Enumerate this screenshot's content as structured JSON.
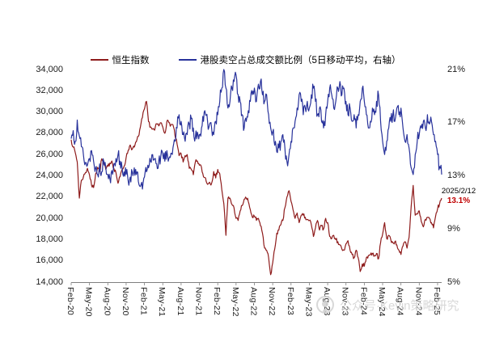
{
  "watermark": {
    "text": "公众号·Kevin策略研究"
  },
  "chart_data": {
    "type": "line",
    "title": "",
    "xlabel": "",
    "grid": false,
    "legend_position": "top",
    "points_per_month": 3,
    "x_tick_labels": [
      "Feb-20",
      "May-20",
      "Aug-20",
      "Nov-20",
      "Feb-21",
      "May-21",
      "Aug-21",
      "Nov-21",
      "Feb-22",
      "May-22",
      "Aug-22",
      "Nov-22",
      "Feb-23",
      "May-23",
      "Aug-23",
      "Nov-23",
      "Feb-24",
      "May-24",
      "Aug-24",
      "Nov-24",
      "Feb-25"
    ],
    "left_axis": {
      "min": 14000,
      "max": 34000,
      "tick_step": 2000,
      "tick_labels": [
        "34,000",
        "32,000",
        "30,000",
        "28,000",
        "26,000",
        "24,000",
        "22,000",
        "20,000",
        "18,000",
        "16,000",
        "14,000"
      ]
    },
    "right_axis": {
      "min": 5,
      "max": 21,
      "tick_step": 4,
      "tick_labels": [
        "21%",
        "17%",
        "13%",
        "9%",
        "5%"
      ]
    },
    "annotation": {
      "date": "2025/2/12",
      "value": "13.1%",
      "color": "#C00000"
    },
    "series": [
      {
        "name": "恒生指数",
        "axis": "left",
        "color": "#8E1B1B",
        "values": [
          27400,
          26700,
          26200,
          25300,
          21900,
          23600,
          23900,
          24300,
          24700,
          24100,
          23100,
          22900,
          24200,
          24800,
          24400,
          25600,
          25100,
          24600,
          24900,
          25200,
          25400,
          24700,
          24300,
          23300,
          23900,
          24600,
          24900,
          25700,
          26400,
          26900,
          26500,
          26700,
          27200,
          27700,
          28600,
          29500,
          30300,
          31000,
          29100,
          28600,
          28400,
          28300,
          28900,
          28700,
          29000,
          28600,
          28000,
          29100,
          29000,
          28800,
          28800,
          27800,
          27000,
          25900,
          26100,
          25300,
          25900,
          26000,
          24700,
          24600,
          24100,
          25300,
          25400,
          25000,
          24800,
          23900,
          23800,
          23200,
          23400,
          23300,
          24400,
          23800,
          24600,
          24200,
          22700,
          21400,
          18400,
          21900,
          21900,
          21300,
          21000,
          20000,
          19800,
          20700,
          21200,
          21800,
          21900,
          21600,
          20800,
          20100,
          20200,
          19800,
          20000,
          19300,
          18600,
          17200,
          17000,
          16300,
          14700,
          15800,
          17100,
          18600,
          18900,
          19400,
          19800,
          21000,
          22000,
          22600,
          21600,
          20800,
          20000,
          20500,
          19600,
          20300,
          20300,
          20100,
          19900,
          19800,
          19400,
          18300,
          19100,
          19800,
          18900,
          19300,
          19000,
          20000,
          19600,
          18300,
          18100,
          18400,
          18000,
          17800,
          17500,
          17100,
          17000,
          17600,
          17900,
          17000,
          16600,
          16300,
          17000,
          16300,
          15000,
          15700,
          15500,
          16300,
          16500,
          16600,
          16700,
          16500,
          16700,
          16200,
          17700,
          18500,
          19600,
          18100,
          18400,
          18000,
          17700,
          17800,
          17500,
          17000,
          16600,
          17400,
          17800,
          17200,
          18200,
          21100,
          23100,
          20300,
          20400,
          20700,
          19700,
          19200,
          19900,
          20100,
          20000,
          19600,
          19100,
          20200,
          20900,
          21400,
          21900
        ]
      },
      {
        "name": "港股卖空占总成交额比例（5日移动平均，右轴）",
        "axis": "right",
        "color": "#28329B",
        "values": [
          15.8,
          16.4,
          15.6,
          17.2,
          16.0,
          15.2,
          14.6,
          14.0,
          13.8,
          14.3,
          14.9,
          14.1,
          13.6,
          13.1,
          13.9,
          13.3,
          14.1,
          13.6,
          13.1,
          12.8,
          13.4,
          13.9,
          14.3,
          14.6,
          14.1,
          13.6,
          13.3,
          13.1,
          12.6,
          12.9,
          13.3,
          13.6,
          13.1,
          12.6,
          12.2,
          12.0,
          12.9,
          13.3,
          13.6,
          14.1,
          14.6,
          14.3,
          13.9,
          14.1,
          14.4,
          14.6,
          14.1,
          14.9,
          14.3,
          14.7,
          15.1,
          15.6,
          16.6,
          17.6,
          17.1,
          16.1,
          15.6,
          16.1,
          16.9,
          17.3,
          16.6,
          15.9,
          16.3,
          16.1,
          16.6,
          17.1,
          17.6,
          17.1,
          16.9,
          16.6,
          16.1,
          17.1,
          17.6,
          18.6,
          19.6,
          21.0,
          19.6,
          18.1,
          18.6,
          19.6,
          20.1,
          20.6,
          19.1,
          18.6,
          17.6,
          16.6,
          17.1,
          17.9,
          18.6,
          19.1,
          19.6,
          18.6,
          19.9,
          20.1,
          19.1,
          18.6,
          19.1,
          17.6,
          16.6,
          16.3,
          15.3,
          14.8,
          15.1,
          15.6,
          16.1,
          15.1,
          14.1,
          14.6,
          15.6,
          16.6,
          17.1,
          18.1,
          19.1,
          18.6,
          17.6,
          18.1,
          18.6,
          18.1,
          19.1,
          19.6,
          18.6,
          17.6,
          18.1,
          17.1,
          16.6,
          17.6,
          18.6,
          19.6,
          19.1,
          18.1,
          18.6,
          19.6,
          20.1,
          19.1,
          19.6,
          18.6,
          17.6,
          18.1,
          17.1,
          17.6,
          16.6,
          17.6,
          18.6,
          19.6,
          18.6,
          17.6,
          16.6,
          17.1,
          18.1,
          17.6,
          18.6,
          19.1,
          17.1,
          15.6,
          14.6,
          15.6,
          16.6,
          17.1,
          17.6,
          17.1,
          18.1,
          17.6,
          18.1,
          16.6,
          15.6,
          16.1,
          15.1,
          13.6,
          13.1,
          14.6,
          15.6,
          16.1,
          16.6,
          17.1,
          16.6,
          17.6,
          16.9,
          17.1,
          16.1,
          15.6,
          14.6,
          13.7,
          13.1
        ]
      }
    ]
  }
}
